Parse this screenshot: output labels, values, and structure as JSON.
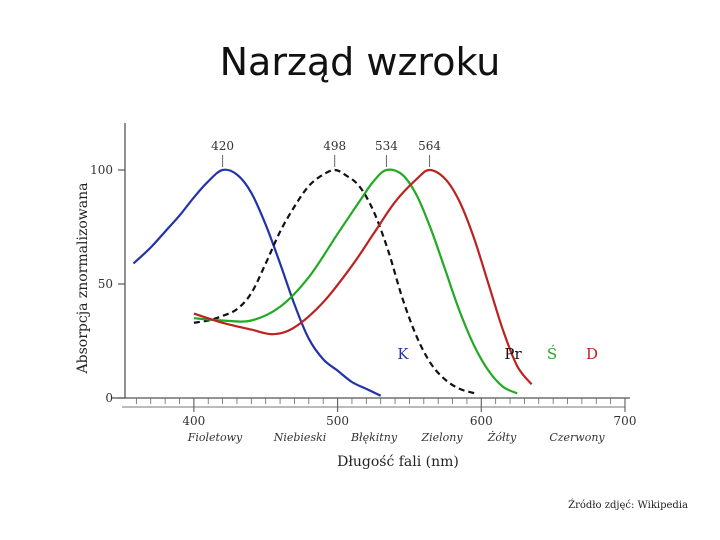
{
  "slide": {
    "title": "Narząd wzroku",
    "credit": "Źródło zdjęć: Wikipedia"
  },
  "chart_data": {
    "type": "line",
    "xlabel": "Długość fali (nm)",
    "ylabel": "Absorpcja znormalizowana",
    "xlim": [
      350,
      700
    ],
    "ylim": [
      0,
      100
    ],
    "x_ticks": [
      400,
      500,
      600,
      700
    ],
    "y_ticks": [
      0,
      50,
      100
    ],
    "color_bands": [
      "Fioletowy",
      "Niebieski",
      "Błękitny",
      "Zielony",
      "Żółty",
      "Czerwony"
    ],
    "peaks": [
      {
        "label": "420",
        "x": 420
      },
      {
        "label": "498",
        "x": 498
      },
      {
        "label": "534",
        "x": 534
      },
      {
        "label": "564",
        "x": 564
      }
    ],
    "series": [
      {
        "name": "K",
        "color": "#2233aa",
        "dash": false,
        "x": [
          358,
          370,
          380,
          390,
          400,
          410,
          420,
          430,
          440,
          450,
          460,
          470,
          480,
          490,
          500,
          510,
          520,
          530
        ],
        "y": [
          59,
          66,
          73,
          80,
          88,
          95,
          100,
          98,
          90,
          76,
          59,
          41,
          26,
          17,
          12,
          7,
          4,
          1
        ]
      },
      {
        "name": "Pr",
        "color": "#111111",
        "dash": true,
        "x": [
          400,
          410,
          420,
          430,
          440,
          450,
          460,
          470,
          480,
          490,
          498,
          505,
          515,
          525,
          535,
          545,
          555,
          565,
          575,
          585,
          596
        ],
        "y": [
          33,
          34,
          36,
          39,
          46,
          59,
          73,
          84,
          93,
          98,
          100,
          98,
          93,
          82,
          65,
          44,
          27,
          15,
          8,
          4,
          2
        ]
      },
      {
        "name": "Ś",
        "color": "#22aa22",
        "dash": false,
        "x": [
          400,
          420,
          440,
          460,
          480,
          500,
          515,
          525,
          534,
          545,
          555,
          565,
          575,
          585,
          595,
          605,
          615,
          625
        ],
        "y": [
          35,
          34,
          34,
          40,
          53,
          72,
          86,
          95,
          100,
          98,
          89,
          74,
          56,
          38,
          23,
          12,
          5,
          2
        ]
      },
      {
        "name": "D",
        "color": "#bb2222",
        "dash": false,
        "x": [
          400,
          420,
          440,
          455,
          470,
          490,
          510,
          525,
          540,
          555,
          564,
          575,
          585,
          595,
          605,
          615,
          625,
          635
        ],
        "y": [
          37,
          33,
          30,
          28,
          31,
          42,
          58,
          72,
          86,
          96,
          100,
          96,
          86,
          70,
          50,
          30,
          14,
          6
        ]
      }
    ]
  }
}
